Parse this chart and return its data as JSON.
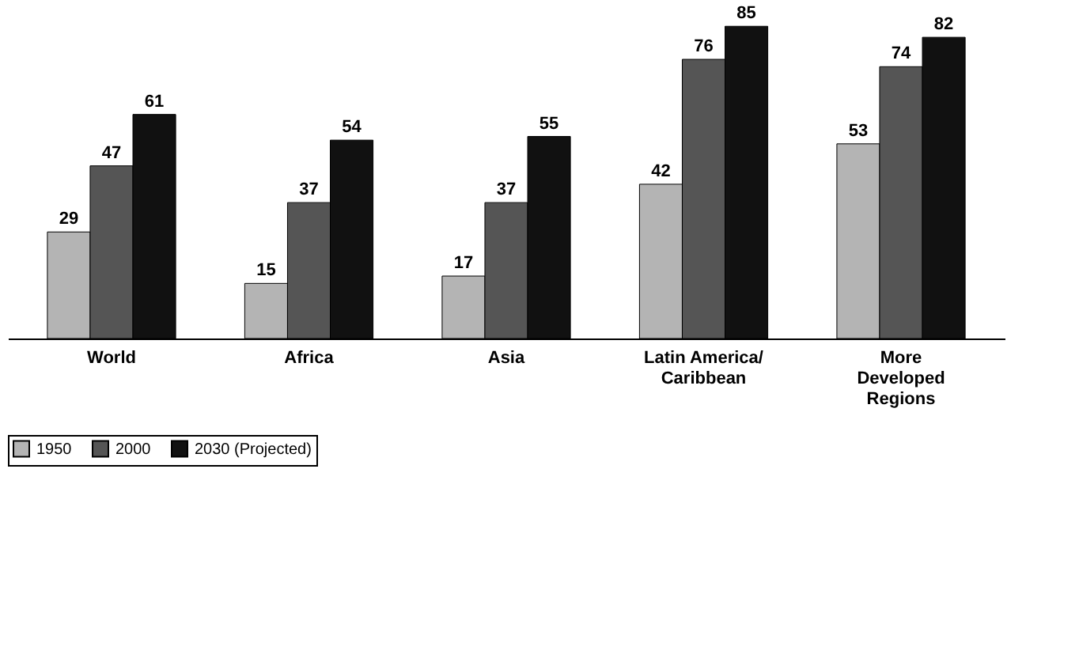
{
  "chart_data": {
    "type": "bar",
    "categories": [
      "World",
      "Africa",
      "Asia",
      "Latin America/\nCaribbean",
      "More\nDeveloped\nRegions"
    ],
    "series": [
      {
        "name": "1950",
        "color": "#b4b4b4",
        "values": [
          29,
          15,
          17,
          42,
          53
        ]
      },
      {
        "name": "2000",
        "color": "#555555",
        "values": [
          47,
          37,
          37,
          76,
          74
        ]
      },
      {
        "name": "2030 (Projected)",
        "color": "#111111",
        "values": [
          61,
          54,
          55,
          85,
          82
        ]
      }
    ],
    "data_labels": true,
    "legend": "bottom",
    "grid": false,
    "tick_labels": "x"
  }
}
